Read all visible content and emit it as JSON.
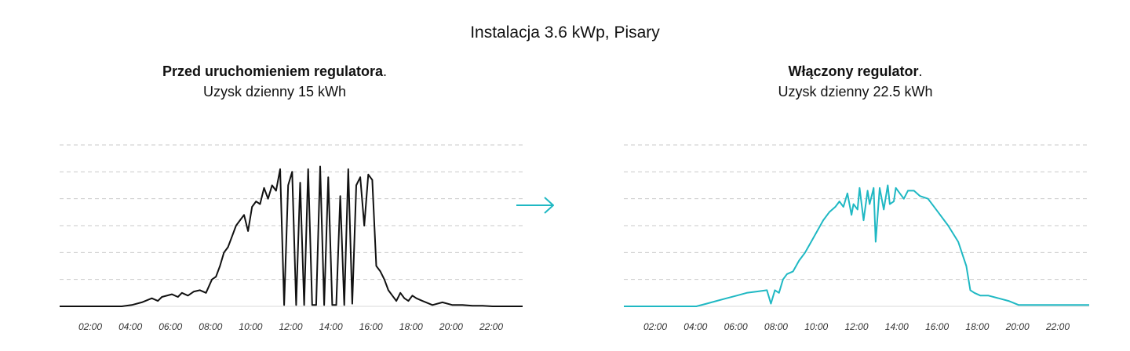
{
  "title": "Instalacja 3.6 kWp, Pisary",
  "panels": [
    {
      "heading_bold": "Przed uruchomieniem regulatora",
      "heading_suffix": ".",
      "subtitle": "Uzysk dzienny 15 kWh"
    },
    {
      "heading_bold": "Włączony regulator",
      "heading_suffix": ".",
      "subtitle": "Uzysk dzienny 22.5 kWh"
    }
  ],
  "arrow_icon": "arrow-right-icon",
  "colors": {
    "before": "#111111",
    "after": "#1fb8c3",
    "arrow": "#1fb8c3",
    "grid": "#c9c9c9"
  },
  "chart_data": [
    {
      "type": "line",
      "title": "Przed uruchomieniem regulatora.",
      "subtitle": "Uzysk dzienny 15 kWh",
      "x_ticks": [
        "02:00",
        "04:00",
        "06:00",
        "08:00",
        "10:00",
        "12:00",
        "14:00",
        "16:00",
        "18:00",
        "20:00",
        "22:00"
      ],
      "xlim": [
        0.9,
        24
      ],
      "ylim": [
        0,
        6
      ],
      "grid": true,
      "y_axis_labels": false,
      "series": [
        {
          "color": "#111111",
          "x": [
            0.9,
            4,
            4.5,
            5,
            5.5,
            5.8,
            6,
            6.5,
            6.8,
            7,
            7.3,
            7.6,
            7.9,
            8.2,
            8.5,
            8.7,
            8.9,
            9.1,
            9.3,
            9.5,
            9.7,
            9.9,
            10.1,
            10.3,
            10.5,
            10.7,
            10.9,
            11.1,
            11.3,
            11.5,
            11.7,
            11.9,
            12.1,
            12.3,
            12.5,
            12.7,
            12.9,
            13.1,
            13.3,
            13.5,
            13.7,
            13.9,
            14.1,
            14.3,
            14.5,
            14.7,
            14.9,
            15.1,
            15.3,
            15.5,
            15.7,
            15.9,
            16.1,
            16.3,
            16.5,
            16.7,
            16.9,
            17.1,
            17.3,
            17.5,
            17.7,
            17.9,
            18.1,
            18.3,
            18.5,
            18.7,
            19,
            19.5,
            20,
            20.5,
            21,
            21.5,
            22,
            22.5,
            23,
            23.5,
            24
          ],
          "y": [
            0,
            0,
            0.05,
            0.15,
            0.3,
            0.2,
            0.35,
            0.45,
            0.35,
            0.5,
            0.4,
            0.55,
            0.6,
            0.5,
            1.0,
            1.1,
            1.5,
            2.0,
            2.2,
            2.6,
            3.0,
            3.2,
            3.4,
            2.8,
            3.7,
            3.9,
            3.8,
            4.4,
            4.0,
            4.5,
            4.3,
            5.1,
            0.05,
            4.5,
            5.0,
            0.05,
            4.6,
            0.05,
            5.1,
            0.05,
            0.05,
            5.2,
            0.05,
            4.8,
            0.05,
            0.05,
            4.1,
            0.05,
            5.1,
            0.1,
            4.5,
            4.8,
            3.0,
            4.9,
            4.7,
            1.5,
            1.3,
            1.0,
            0.6,
            0.4,
            0.2,
            0.5,
            0.3,
            0.2,
            0.4,
            0.3,
            0.2,
            0.05,
            0.15,
            0.05,
            0.05,
            0.02,
            0.02,
            0,
            0,
            0,
            0
          ]
        }
      ]
    },
    {
      "type": "line",
      "title": "Włączony regulator.",
      "subtitle": "Uzysk dzienny 22.5 kWh",
      "x_ticks": [
        "02:00",
        "04:00",
        "06:00",
        "08:00",
        "10:00",
        "12:00",
        "14:00",
        "16:00",
        "18:00",
        "20:00",
        "22:00"
      ],
      "xlim": [
        0.9,
        24
      ],
      "ylim": [
        0,
        6
      ],
      "grid": true,
      "y_axis_labels": false,
      "series": [
        {
          "color": "#1fb8c3",
          "x": [
            0.9,
            4.5,
            5,
            5.5,
            6,
            6.5,
            7,
            7.5,
            8,
            8.2,
            8.4,
            8.6,
            8.8,
            9,
            9.3,
            9.6,
            9.9,
            10.2,
            10.5,
            10.8,
            11.1,
            11.4,
            11.6,
            11.8,
            12,
            12.2,
            12.3,
            12.5,
            12.6,
            12.8,
            13,
            13.1,
            13.3,
            13.4,
            13.6,
            13.8,
            14,
            14.1,
            14.3,
            14.4,
            14.6,
            14.8,
            15,
            15.3,
            15.6,
            16,
            16.5,
            17,
            17.5,
            17.9,
            18.1,
            18.3,
            18.6,
            19,
            19.5,
            20,
            20.5,
            21,
            21.5,
            22,
            22.5,
            23,
            24
          ],
          "y": [
            0,
            0,
            0.1,
            0.2,
            0.3,
            0.4,
            0.5,
            0.55,
            0.6,
            0.1,
            0.6,
            0.5,
            1.0,
            1.2,
            1.3,
            1.7,
            2.0,
            2.4,
            2.8,
            3.2,
            3.5,
            3.7,
            3.9,
            3.7,
            4.2,
            3.4,
            3.8,
            3.6,
            4.4,
            3.2,
            4.3,
            3.8,
            4.4,
            2.4,
            4.4,
            3.6,
            4.5,
            3.8,
            3.9,
            4.4,
            4.2,
            4.0,
            4.3,
            4.3,
            4.1,
            4.0,
            3.5,
            3.0,
            2.4,
            1.5,
            0.6,
            0.5,
            0.4,
            0.4,
            0.3,
            0.2,
            0.05,
            0.05,
            0.05,
            0.05,
            0.05,
            0.05,
            0.05
          ]
        }
      ]
    }
  ]
}
